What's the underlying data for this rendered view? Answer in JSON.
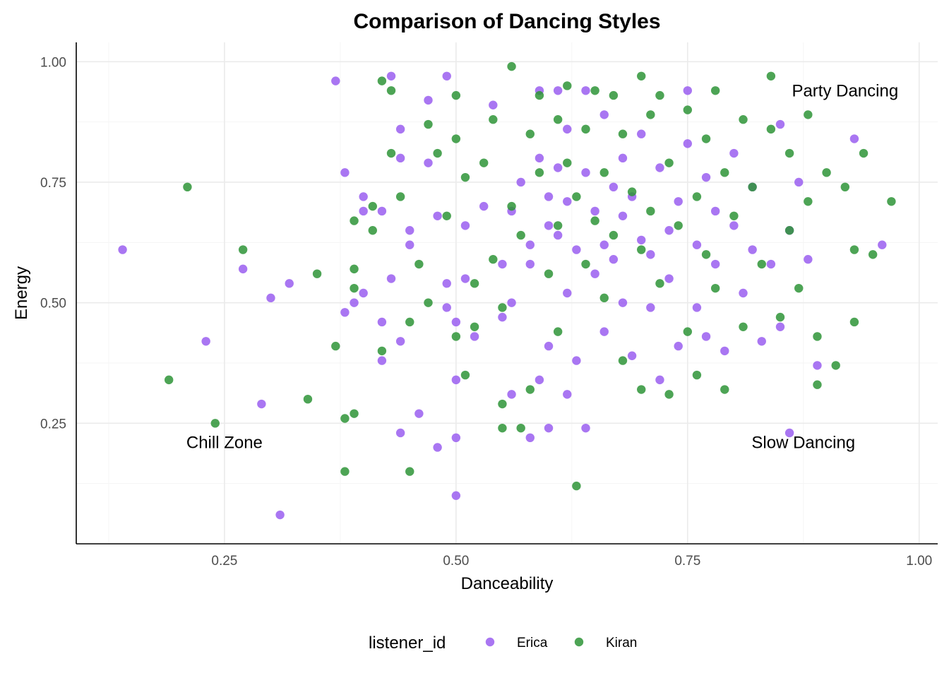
{
  "chart_data": {
    "type": "scatter",
    "title": "Comparison of Dancing Styles",
    "xlabel": "Danceability",
    "ylabel": "Energy",
    "xlim": [
      0.09,
      1.02
    ],
    "ylim": [
      0.0,
      1.04
    ],
    "xticks": [
      0.25,
      0.5,
      0.75,
      1.0
    ],
    "xtick_labels": [
      "0.25",
      "0.50",
      "0.75",
      "1.00"
    ],
    "yticks": [
      0.25,
      0.5,
      0.75,
      1.0
    ],
    "ytick_labels": [
      "0.25",
      "0.50",
      "0.75",
      "1.00"
    ],
    "grid": true,
    "legend": {
      "title": "listener_id",
      "position": "bottom",
      "entries": [
        "Erica",
        "Kiran"
      ]
    },
    "annotations": [
      {
        "text": "Party Dancing",
        "x": 0.92,
        "y": 0.94
      },
      {
        "text": "Chill Zone",
        "x": 0.25,
        "y": 0.21
      },
      {
        "text": "Slow Dancing",
        "x": 0.875,
        "y": 0.21
      }
    ],
    "series": [
      {
        "name": "Erica",
        "color": "#9a5ef0",
        "points": [
          [
            0.14,
            0.61
          ],
          [
            0.23,
            0.42
          ],
          [
            0.27,
            0.57
          ],
          [
            0.29,
            0.29
          ],
          [
            0.3,
            0.51
          ],
          [
            0.31,
            0.06
          ],
          [
            0.32,
            0.54
          ],
          [
            0.37,
            0.96
          ],
          [
            0.38,
            0.77
          ],
          [
            0.38,
            0.48
          ],
          [
            0.39,
            0.5
          ],
          [
            0.4,
            0.72
          ],
          [
            0.4,
            0.69
          ],
          [
            0.4,
            0.52
          ],
          [
            0.42,
            0.69
          ],
          [
            0.42,
            0.46
          ],
          [
            0.42,
            0.38
          ],
          [
            0.43,
            0.97
          ],
          [
            0.43,
            0.55
          ],
          [
            0.44,
            0.23
          ],
          [
            0.44,
            0.86
          ],
          [
            0.44,
            0.8
          ],
          [
            0.44,
            0.42
          ],
          [
            0.45,
            0.65
          ],
          [
            0.45,
            0.62
          ],
          [
            0.46,
            0.27
          ],
          [
            0.47,
            0.92
          ],
          [
            0.47,
            0.79
          ],
          [
            0.48,
            0.68
          ],
          [
            0.48,
            0.2
          ],
          [
            0.49,
            0.97
          ],
          [
            0.49,
            0.54
          ],
          [
            0.49,
            0.49
          ],
          [
            0.5,
            0.46
          ],
          [
            0.5,
            0.34
          ],
          [
            0.5,
            0.22
          ],
          [
            0.5,
            0.1
          ],
          [
            0.51,
            0.66
          ],
          [
            0.51,
            0.55
          ],
          [
            0.52,
            0.43
          ],
          [
            0.53,
            0.7
          ],
          [
            0.54,
            0.91
          ],
          [
            0.55,
            0.58
          ],
          [
            0.55,
            0.47
          ],
          [
            0.56,
            0.69
          ],
          [
            0.56,
            0.5
          ],
          [
            0.56,
            0.31
          ],
          [
            0.57,
            0.75
          ],
          [
            0.58,
            0.62
          ],
          [
            0.58,
            0.58
          ],
          [
            0.58,
            0.22
          ],
          [
            0.59,
            0.94
          ],
          [
            0.59,
            0.8
          ],
          [
            0.59,
            0.34
          ],
          [
            0.6,
            0.72
          ],
          [
            0.6,
            0.66
          ],
          [
            0.6,
            0.41
          ],
          [
            0.6,
            0.24
          ],
          [
            0.61,
            0.94
          ],
          [
            0.61,
            0.78
          ],
          [
            0.61,
            0.64
          ],
          [
            0.62,
            0.86
          ],
          [
            0.62,
            0.71
          ],
          [
            0.62,
            0.52
          ],
          [
            0.62,
            0.31
          ],
          [
            0.63,
            0.61
          ],
          [
            0.63,
            0.38
          ],
          [
            0.64,
            0.94
          ],
          [
            0.64,
            0.77
          ],
          [
            0.64,
            0.24
          ],
          [
            0.65,
            0.69
          ],
          [
            0.65,
            0.56
          ],
          [
            0.66,
            0.89
          ],
          [
            0.66,
            0.62
          ],
          [
            0.66,
            0.44
          ],
          [
            0.67,
            0.74
          ],
          [
            0.67,
            0.59
          ],
          [
            0.68,
            0.8
          ],
          [
            0.68,
            0.68
          ],
          [
            0.68,
            0.5
          ],
          [
            0.69,
            0.72
          ],
          [
            0.69,
            0.39
          ],
          [
            0.7,
            0.63
          ],
          [
            0.7,
            0.85
          ],
          [
            0.71,
            0.6
          ],
          [
            0.71,
            0.49
          ],
          [
            0.72,
            0.78
          ],
          [
            0.72,
            0.34
          ],
          [
            0.73,
            0.65
          ],
          [
            0.73,
            0.55
          ],
          [
            0.74,
            0.71
          ],
          [
            0.74,
            0.41
          ],
          [
            0.75,
            0.94
          ],
          [
            0.75,
            0.83
          ],
          [
            0.76,
            0.62
          ],
          [
            0.76,
            0.49
          ],
          [
            0.77,
            0.76
          ],
          [
            0.77,
            0.43
          ],
          [
            0.78,
            0.69
          ],
          [
            0.78,
            0.58
          ],
          [
            0.79,
            0.4
          ],
          [
            0.8,
            0.81
          ],
          [
            0.8,
            0.66
          ],
          [
            0.81,
            0.52
          ],
          [
            0.82,
            0.74
          ],
          [
            0.82,
            0.61
          ],
          [
            0.83,
            0.42
          ],
          [
            0.84,
            0.58
          ],
          [
            0.85,
            0.45
          ],
          [
            0.85,
            0.87
          ],
          [
            0.86,
            0.65
          ],
          [
            0.86,
            0.23
          ],
          [
            0.87,
            0.75
          ],
          [
            0.88,
            0.59
          ],
          [
            0.89,
            0.37
          ],
          [
            0.93,
            0.84
          ],
          [
            0.96,
            0.62
          ]
        ]
      },
      {
        "name": "Kiran",
        "color": "#2e9437",
        "points": [
          [
            0.19,
            0.34
          ],
          [
            0.21,
            0.74
          ],
          [
            0.24,
            0.25
          ],
          [
            0.27,
            0.61
          ],
          [
            0.34,
            0.3
          ],
          [
            0.35,
            0.56
          ],
          [
            0.37,
            0.41
          ],
          [
            0.38,
            0.15
          ],
          [
            0.38,
            0.26
          ],
          [
            0.39,
            0.27
          ],
          [
            0.39,
            0.57
          ],
          [
            0.39,
            0.67
          ],
          [
            0.39,
            0.53
          ],
          [
            0.41,
            0.65
          ],
          [
            0.41,
            0.7
          ],
          [
            0.42,
            0.96
          ],
          [
            0.42,
            0.4
          ],
          [
            0.43,
            0.94
          ],
          [
            0.43,
            0.81
          ],
          [
            0.44,
            0.72
          ],
          [
            0.45,
            0.46
          ],
          [
            0.45,
            0.15
          ],
          [
            0.46,
            0.58
          ],
          [
            0.47,
            0.5
          ],
          [
            0.47,
            0.87
          ],
          [
            0.48,
            0.81
          ],
          [
            0.49,
            0.68
          ],
          [
            0.5,
            0.84
          ],
          [
            0.5,
            0.93
          ],
          [
            0.5,
            0.43
          ],
          [
            0.51,
            0.35
          ],
          [
            0.51,
            0.76
          ],
          [
            0.52,
            0.54
          ],
          [
            0.52,
            0.45
          ],
          [
            0.53,
            0.79
          ],
          [
            0.54,
            0.88
          ],
          [
            0.54,
            0.59
          ],
          [
            0.55,
            0.49
          ],
          [
            0.55,
            0.29
          ],
          [
            0.55,
            0.24
          ],
          [
            0.56,
            0.99
          ],
          [
            0.56,
            0.7
          ],
          [
            0.57,
            0.64
          ],
          [
            0.57,
            0.24
          ],
          [
            0.58,
            0.85
          ],
          [
            0.58,
            0.32
          ],
          [
            0.59,
            0.93
          ],
          [
            0.59,
            0.77
          ],
          [
            0.6,
            0.56
          ],
          [
            0.61,
            0.88
          ],
          [
            0.61,
            0.66
          ],
          [
            0.61,
            0.44
          ],
          [
            0.62,
            0.95
          ],
          [
            0.62,
            0.79
          ],
          [
            0.63,
            0.72
          ],
          [
            0.63,
            0.12
          ],
          [
            0.64,
            0.86
          ],
          [
            0.64,
            0.58
          ],
          [
            0.65,
            0.94
          ],
          [
            0.65,
            0.67
          ],
          [
            0.66,
            0.77
          ],
          [
            0.66,
            0.51
          ],
          [
            0.67,
            0.93
          ],
          [
            0.67,
            0.64
          ],
          [
            0.68,
            0.38
          ],
          [
            0.68,
            0.85
          ],
          [
            0.69,
            0.73
          ],
          [
            0.7,
            0.97
          ],
          [
            0.7,
            0.61
          ],
          [
            0.7,
            0.32
          ],
          [
            0.71,
            0.89
          ],
          [
            0.71,
            0.69
          ],
          [
            0.72,
            0.93
          ],
          [
            0.72,
            0.54
          ],
          [
            0.73,
            0.79
          ],
          [
            0.73,
            0.31
          ],
          [
            0.74,
            0.66
          ],
          [
            0.75,
            0.9
          ],
          [
            0.75,
            0.44
          ],
          [
            0.76,
            0.72
          ],
          [
            0.76,
            0.35
          ],
          [
            0.77,
            0.84
          ],
          [
            0.77,
            0.6
          ],
          [
            0.78,
            0.94
          ],
          [
            0.78,
            0.53
          ],
          [
            0.79,
            0.77
          ],
          [
            0.79,
            0.32
          ],
          [
            0.8,
            0.68
          ],
          [
            0.81,
            0.88
          ],
          [
            0.81,
            0.45
          ],
          [
            0.82,
            0.74
          ],
          [
            0.83,
            0.58
          ],
          [
            0.84,
            0.97
          ],
          [
            0.84,
            0.86
          ],
          [
            0.85,
            0.47
          ],
          [
            0.86,
            0.81
          ],
          [
            0.86,
            0.65
          ],
          [
            0.87,
            0.53
          ],
          [
            0.88,
            0.89
          ],
          [
            0.88,
            0.71
          ],
          [
            0.89,
            0.43
          ],
          [
            0.89,
            0.33
          ],
          [
            0.9,
            0.77
          ],
          [
            0.91,
            0.37
          ],
          [
            0.92,
            0.74
          ],
          [
            0.93,
            0.46
          ],
          [
            0.93,
            0.61
          ],
          [
            0.94,
            0.81
          ],
          [
            0.95,
            0.6
          ],
          [
            0.97,
            0.71
          ]
        ]
      }
    ]
  }
}
